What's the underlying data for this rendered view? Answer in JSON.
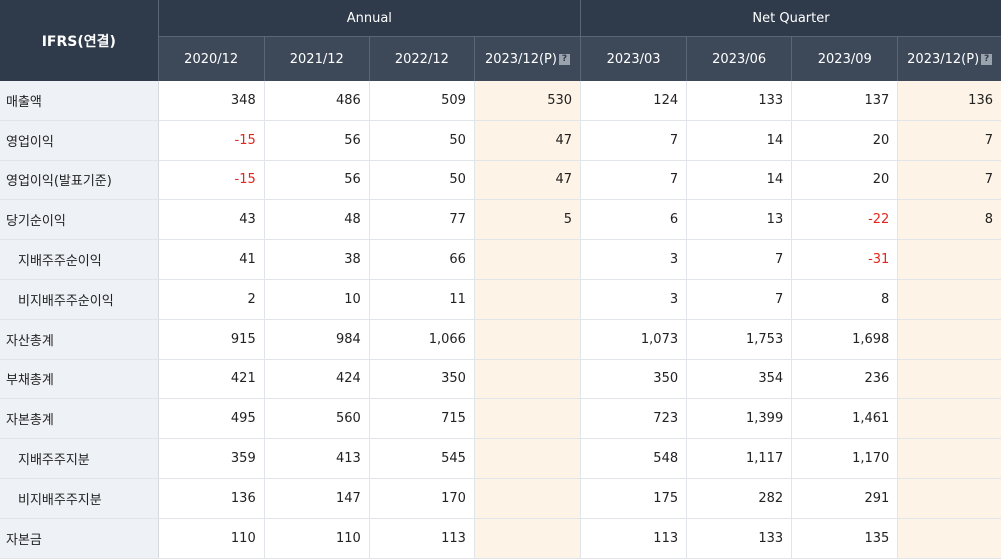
{
  "header": {
    "corner": "IFRS(연결)",
    "groups": [
      "Annual",
      "Net Quarter"
    ],
    "periods": [
      "2020/12",
      "2021/12",
      "2022/12",
      "2023/12(P)",
      "2023/03",
      "2023/06",
      "2023/09",
      "2023/12(P)"
    ],
    "estimate_icon": "?"
  },
  "rows": [
    {
      "label": "매출액",
      "sub": false,
      "values": [
        "348",
        "486",
        "509",
        "530",
        "124",
        "133",
        "137",
        "136"
      ]
    },
    {
      "label": "영업이익",
      "sub": false,
      "values": [
        "-15",
        "56",
        "50",
        "47",
        "7",
        "14",
        "20",
        "7"
      ]
    },
    {
      "label": "영업이익(발표기준)",
      "sub": false,
      "values": [
        "-15",
        "56",
        "50",
        "47",
        "7",
        "14",
        "20",
        "7"
      ]
    },
    {
      "label": "당기순이익",
      "sub": false,
      "values": [
        "43",
        "48",
        "77",
        "5",
        "6",
        "13",
        "-22",
        "8"
      ]
    },
    {
      "label": "지배주주순이익",
      "sub": true,
      "values": [
        "41",
        "38",
        "66",
        "",
        "3",
        "7",
        "-31",
        ""
      ]
    },
    {
      "label": "비지배주주순이익",
      "sub": true,
      "values": [
        "2",
        "10",
        "11",
        "",
        "3",
        "7",
        "8",
        ""
      ]
    },
    {
      "label": "자산총계",
      "sub": false,
      "values": [
        "915",
        "984",
        "1,066",
        "",
        "1,073",
        "1,753",
        "1,698",
        ""
      ]
    },
    {
      "label": "부채총계",
      "sub": false,
      "values": [
        "421",
        "424",
        "350",
        "",
        "350",
        "354",
        "236",
        ""
      ]
    },
    {
      "label": "자본총계",
      "sub": false,
      "values": [
        "495",
        "560",
        "715",
        "",
        "723",
        "1,399",
        "1,461",
        ""
      ]
    },
    {
      "label": "지배주주지분",
      "sub": true,
      "values": [
        "359",
        "413",
        "545",
        "",
        "548",
        "1,117",
        "1,170",
        ""
      ]
    },
    {
      "label": "비지배주주지분",
      "sub": true,
      "values": [
        "136",
        "147",
        "170",
        "",
        "175",
        "282",
        "291",
        ""
      ]
    },
    {
      "label": "자본금",
      "sub": false,
      "values": [
        "110",
        "110",
        "113",
        "",
        "113",
        "133",
        "135",
        ""
      ]
    }
  ],
  "colors": {
    "header_bg": "#2f3a4a",
    "label_bg": "#eef1f5",
    "estimate_bg": "#fdf3e6",
    "negative": "#e0261f"
  }
}
